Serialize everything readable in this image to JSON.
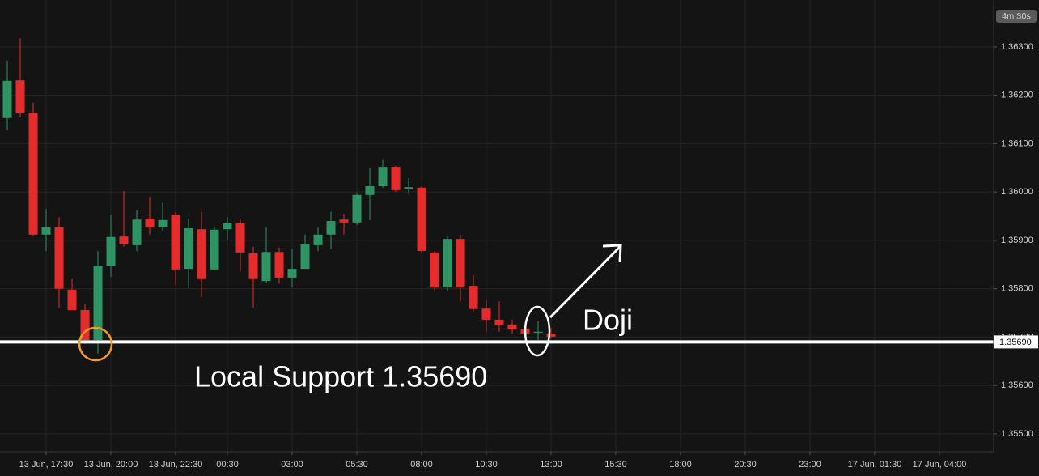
{
  "chart_data": {
    "type": "candlestick",
    "x": [
      0,
      1,
      2,
      3,
      4,
      5,
      6,
      7,
      8,
      9,
      10,
      11,
      12,
      13,
      14,
      15,
      16,
      17,
      18,
      19,
      20,
      21,
      22,
      23,
      24,
      25,
      26,
      27,
      28,
      29,
      30,
      31,
      32,
      33,
      34,
      35,
      36,
      37,
      38,
      39,
      40,
      41,
      42
    ],
    "open": [
      1.36153,
      1.36231,
      1.36164,
      1.35912,
      1.35927,
      1.35798,
      1.35756,
      1.35694,
      1.35848,
      1.35908,
      1.3589,
      1.35945,
      1.35927,
      1.35953,
      1.35841,
      1.35923,
      1.3584,
      1.35923,
      1.35935,
      1.35873,
      1.35816,
      1.35876,
      1.35823,
      1.35841,
      1.3589,
      1.35912,
      1.35943,
      1.35937,
      1.35994,
      1.36012,
      1.36052,
      1.36007,
      1.36009,
      1.35875,
      1.35803,
      1.35903,
      1.35806,
      1.35759,
      1.35736,
      1.35726,
      1.35717,
      1.35709,
      1.35707
    ],
    "high": [
      1.36272,
      1.36318,
      1.36185,
      1.35965,
      1.35948,
      1.3582,
      1.35768,
      1.35878,
      1.35953,
      1.36002,
      1.35962,
      1.3599,
      1.35979,
      1.35959,
      1.35945,
      1.35959,
      1.35928,
      1.35948,
      1.35945,
      1.35887,
      1.35928,
      1.35885,
      1.35882,
      1.35912,
      1.35928,
      1.35959,
      1.35955,
      1.35999,
      1.36049,
      1.36066,
      1.36054,
      1.36029,
      1.36012,
      1.35878,
      1.35908,
      1.35912,
      1.35828,
      1.35778,
      1.35774,
      1.35736,
      1.35731,
      1.35733,
      1.35719
    ],
    "low": [
      1.36129,
      1.36154,
      1.35908,
      1.35878,
      1.35761,
      1.35756,
      1.35686,
      1.35666,
      1.35825,
      1.35887,
      1.35878,
      1.35912,
      1.3592,
      1.35808,
      1.35801,
      1.35783,
      1.35838,
      1.359,
      1.35836,
      1.35761,
      1.35811,
      1.35811,
      1.35803,
      1.35841,
      1.35878,
      1.35882,
      1.35912,
      1.35932,
      1.35942,
      1.36009,
      1.36,
      1.35995,
      1.35875,
      1.35795,
      1.35795,
      1.35774,
      1.35753,
      1.35711,
      1.35711,
      1.35707,
      1.35697,
      1.35694,
      1.35697
    ],
    "close": [
      1.3623,
      1.36163,
      1.35912,
      1.35927,
      1.358,
      1.35756,
      1.35694,
      1.35848,
      1.35907,
      1.35892,
      1.35943,
      1.35927,
      1.35942,
      1.3584,
      1.35925,
      1.3582,
      1.35922,
      1.35935,
      1.35875,
      1.3582,
      1.35876,
      1.35823,
      1.35841,
      1.35892,
      1.35912,
      1.3594,
      1.35937,
      1.35994,
      1.36012,
      1.36052,
      1.36004,
      1.3601,
      1.35878,
      1.35803,
      1.35903,
      1.35803,
      1.35758,
      1.35736,
      1.35724,
      1.35716,
      1.35707,
      1.35711,
      1.35701
    ],
    "up_color": "#2e9463",
    "down_color": "#e52b2b",
    "xlim": [
      -0.5625,
      76.1875
    ],
    "xticks": [
      {
        "value": 3,
        "label": "13 Jun, 17:30"
      },
      {
        "value": 8,
        "label": "13 Jun, 20:00"
      },
      {
        "value": 13,
        "label": "13 Jun, 22:30"
      },
      {
        "value": 17,
        "label": "00:30"
      },
      {
        "value": 22,
        "label": "03:00"
      },
      {
        "value": 27,
        "label": "05:30"
      },
      {
        "value": 32,
        "label": "08:00"
      },
      {
        "value": 37,
        "label": "10:30"
      },
      {
        "value": 42,
        "label": "13:00"
      },
      {
        "value": 47,
        "label": "15:30"
      },
      {
        "value": 52,
        "label": "18:00"
      },
      {
        "value": 57,
        "label": "20:30"
      },
      {
        "value": 62,
        "label": "23:00"
      },
      {
        "value": 67,
        "label": "17 Jun, 01:30"
      },
      {
        "value": 72,
        "label": "17 Jun, 04:00"
      }
    ],
    "ylim": [
      1.35463,
      1.36397
    ],
    "yticks": [
      {
        "value": 1.355,
        "label": "1.35500"
      },
      {
        "value": 1.356,
        "label": "1.35600"
      },
      {
        "value": 1.357,
        "label": "1.35700"
      },
      {
        "value": 1.358,
        "label": "1.35800"
      },
      {
        "value": 1.359,
        "label": "1.35900"
      },
      {
        "value": 1.36,
        "label": "1.36000"
      },
      {
        "value": 1.361,
        "label": "1.36100"
      },
      {
        "value": 1.362,
        "label": "1.36200"
      },
      {
        "value": 1.363,
        "label": "1.36300"
      }
    ],
    "grid": true,
    "support": {
      "value": 1.3569,
      "label": "1.35690"
    },
    "countdown": "4m 30s",
    "annotations": [
      "Local Support 1.35690",
      "Doji"
    ]
  }
}
